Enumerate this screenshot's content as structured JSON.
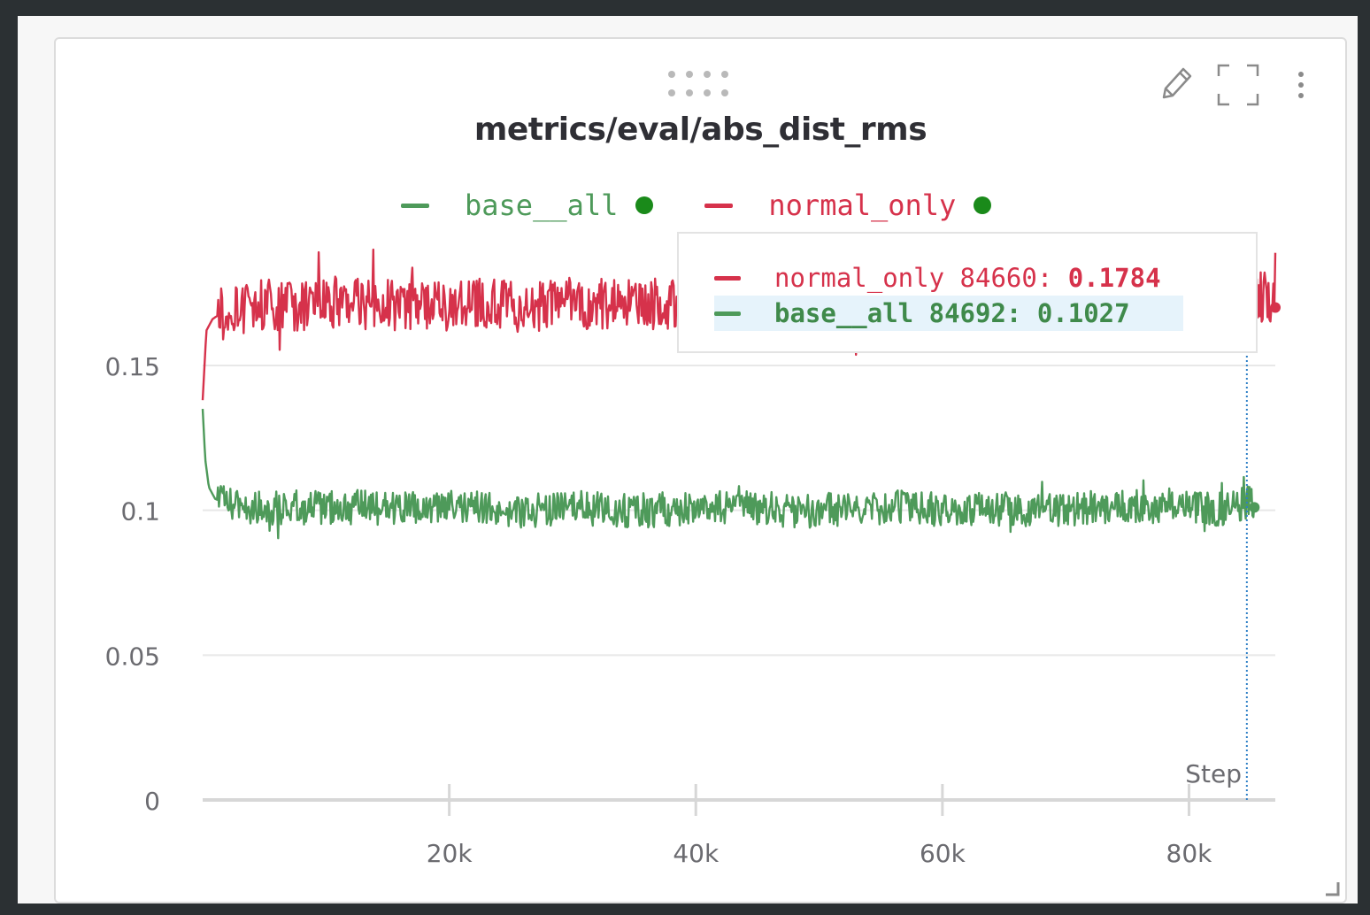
{
  "panel": {
    "toolbar": {
      "edit_icon": "pencil-icon",
      "fullscreen_icon": "expand-icon",
      "menu_icon": "more-vertical-icon"
    }
  },
  "colors": {
    "base_all": "#4e9a5a",
    "normal_only": "#d6324b",
    "legend_dot": "#1a8a1a",
    "grid": "#e8e8e8",
    "axis_text": "#6b6b70",
    "cursor_line": "#2d7fc6"
  },
  "chart_data": {
    "type": "line",
    "title": "metrics/eval/abs_dist_rms",
    "xlabel": "Step",
    "ylabel": "",
    "xlim": [
      0,
      87000
    ],
    "ylim": [
      0,
      0.19
    ],
    "yticks": [
      0,
      0.05,
      0.1,
      0.15
    ],
    "ytick_labels": [
      "0",
      "0.05",
      "0.1",
      "0.15"
    ],
    "xticks": [
      20000,
      40000,
      60000,
      80000
    ],
    "xtick_labels": [
      "20k",
      "40k",
      "60k",
      "80k"
    ],
    "grid": true,
    "legend_position": "top-center",
    "series": [
      {
        "name": "base__all",
        "color": "#4e9a5a",
        "x": [
          0,
          200,
          500,
          1000,
          2000,
          4000,
          6000,
          8000,
          10000,
          12000,
          15000,
          18000,
          20000,
          22000,
          25000,
          28000,
          30000,
          33000,
          36000,
          40000,
          43000,
          46000,
          50000,
          53000,
          56000,
          60000,
          63000,
          66000,
          70000,
          73000,
          76000,
          80000,
          83000,
          84692,
          85300
        ],
        "y": [
          0.135,
          0.118,
          0.108,
          0.104,
          0.102,
          0.101,
          0.101,
          0.101,
          0.101,
          0.101,
          0.101,
          0.1,
          0.101,
          0.101,
          0.1,
          0.1,
          0.101,
          0.1,
          0.1,
          0.101,
          0.101,
          0.1,
          0.1,
          0.1,
          0.101,
          0.1,
          0.101,
          0.1,
          0.1,
          0.101,
          0.101,
          0.101,
          0.1,
          0.1027,
          0.101
        ],
        "noise_amplitude": 0.006
      },
      {
        "name": "normal_only",
        "color": "#d6324b",
        "x": [
          0,
          300,
          800,
          1500,
          3000,
          5000,
          8000,
          10000,
          13000,
          16000,
          20000,
          23000,
          26000,
          30000,
          34000,
          38000,
          42000,
          46000,
          50000,
          54000,
          58000,
          62000,
          66000,
          70000,
          74000,
          78000,
          82000,
          84660,
          87000
        ],
        "y": [
          0.138,
          0.162,
          0.166,
          0.168,
          0.169,
          0.171,
          0.171,
          0.172,
          0.171,
          0.171,
          0.171,
          0.171,
          0.17,
          0.171,
          0.171,
          0.171,
          0.17,
          0.171,
          0.171,
          0.171,
          0.17,
          0.171,
          0.171,
          0.171,
          0.171,
          0.17,
          0.171,
          0.1784,
          0.17
        ],
        "noise_amplitude": 0.009
      }
    ],
    "hover": {
      "step_cursor": 84692,
      "entries": [
        {
          "name": "normal_only",
          "step": "84660:",
          "value": "0.1784",
          "color": "#d6324b",
          "highlighted": false
        },
        {
          "name": "base__all",
          "step": "84692:",
          "value": "0.1027",
          "color": "#4e9a5a",
          "highlighted": true
        }
      ]
    }
  }
}
